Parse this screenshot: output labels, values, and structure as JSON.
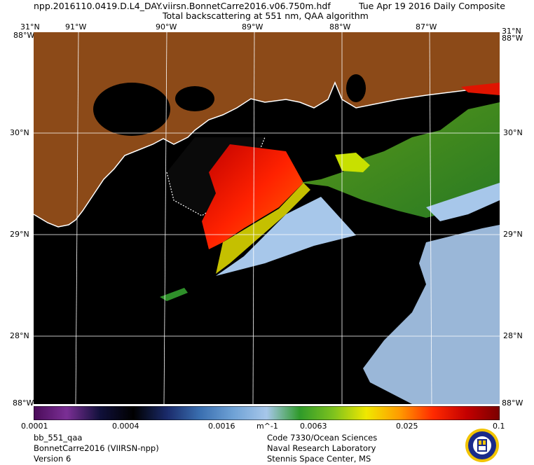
{
  "header": {
    "filename": "npp.2016110.0419.D.L4_DAY.viirsn.BonnetCarre2016.v06.750m.hdf",
    "date": "Tue Apr 19 2016 Daily Composite",
    "subtitle": "Total backscattering at 551 nm, QAA algorithm"
  },
  "axes": {
    "top_labels": [
      "31°N",
      "91°W",
      "90°W",
      "89°W",
      "88°W",
      "87°W",
      "31°N"
    ],
    "left_lat_labels": [
      "30°N",
      "29°N",
      "28°N"
    ],
    "right_lat_labels": [
      "30°N",
      "29°N",
      "28°N"
    ],
    "corner_top_left": "88°W",
    "corner_top_right": "88°W",
    "corner_bottom_left": "88°W",
    "corner_bottom_right": "88°W"
  },
  "colorbar": {
    "ticks": [
      "0.0001",
      "0.0004",
      "0.0016",
      "0.0063",
      "0.025",
      "0.1"
    ],
    "unit": "m^-1",
    "colors": [
      "#4a0b59",
      "#7b2f95",
      "#10103a",
      "#000000",
      "#1a2a6a",
      "#3a6fb0",
      "#6fa2d6",
      "#a7c7ea",
      "#2f9a2a",
      "#7dc21e",
      "#f0e800",
      "#ff9a00",
      "#ff2a00",
      "#c40000",
      "#7a0000"
    ]
  },
  "footer": {
    "product": "bb_551_qaa",
    "region": "BonnetCarre2016 (VIIRSN-npp)",
    "version": "Version 6",
    "org1": "Code 7330/Ocean Sciences",
    "org2": "Naval Research Laboratory",
    "org3": "Stennis Space Center, MS"
  },
  "map_colors": {
    "land": "#8c4a18",
    "no_data": "#000000",
    "coast": "#ffffff",
    "clear_water": "#a7c7ea",
    "high_bb": "#e01400"
  },
  "icons": [
    "nrl-seal-icon"
  ]
}
